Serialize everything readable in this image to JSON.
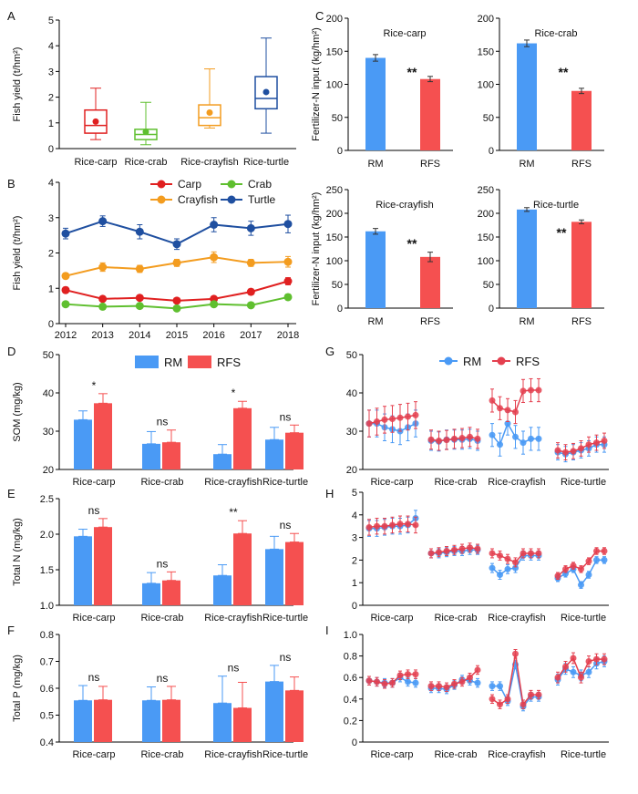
{
  "colors": {
    "carp": "#e02020",
    "crab": "#5fbf2f",
    "crayfish": "#f39c1f",
    "turtle": "#1f4fa0",
    "rm": "#4a9af5",
    "rfs": "#f55050",
    "rm_line": "#4a9af5",
    "rfs_line": "#e4404f"
  },
  "chart_data": [
    {
      "panel": "A",
      "type": "box",
      "ylabel": "Fish yield (t/hm²)",
      "ylim": [
        0,
        5
      ],
      "yticks": [
        0,
        1,
        2,
        3,
        4,
        5
      ],
      "categories": [
        "Rice-carp",
        "Rice-crab",
        "Rice-crayfish",
        "Rice-turtle"
      ],
      "boxes": [
        {
          "min": 0.35,
          "q1": 0.6,
          "median": 0.9,
          "q3": 1.5,
          "max": 2.35,
          "mean": 1.05
        },
        {
          "min": 0.15,
          "q1": 0.35,
          "median": 0.55,
          "q3": 0.75,
          "max": 1.8,
          "mean": 0.65
        },
        {
          "min": 0.8,
          "q1": 0.9,
          "median": 1.2,
          "q3": 1.7,
          "max": 3.1,
          "mean": 1.4
        },
        {
          "min": 0.6,
          "q1": 1.55,
          "median": 1.95,
          "q3": 2.8,
          "max": 4.3,
          "mean": 2.2
        }
      ]
    },
    {
      "panel": "B",
      "type": "line",
      "ylabel": "Fish yield (t/hm²)",
      "ylim": [
        0,
        4
      ],
      "yticks": [
        0,
        1,
        2,
        3,
        4
      ],
      "x": [
        "2012",
        "2013",
        "2014",
        "2015",
        "2016",
        "2017",
        "2018"
      ],
      "series": [
        {
          "name": "Carp",
          "values": [
            0.95,
            0.7,
            0.73,
            0.65,
            0.7,
            0.9,
            1.2
          ],
          "err": [
            0.08,
            0.06,
            0.06,
            0.05,
            0.06,
            0.08,
            0.1
          ]
        },
        {
          "name": "Crab",
          "values": [
            0.55,
            0.48,
            0.5,
            0.43,
            0.55,
            0.52,
            0.75
          ],
          "err": [
            0.06,
            0.05,
            0.05,
            0.06,
            0.06,
            0.06,
            0.08
          ]
        },
        {
          "name": "Crayfish",
          "values": [
            1.35,
            1.6,
            1.55,
            1.72,
            1.88,
            1.72,
            1.75
          ],
          "err": [
            0.08,
            0.12,
            0.1,
            0.1,
            0.15,
            0.1,
            0.15
          ]
        },
        {
          "name": "Turtle",
          "values": [
            2.55,
            2.9,
            2.6,
            2.25,
            2.8,
            2.7,
            2.82
          ],
          "err": [
            0.15,
            0.15,
            0.2,
            0.15,
            0.2,
            0.2,
            0.25
          ]
        }
      ]
    },
    {
      "panel": "C",
      "type": "bar",
      "ylabel": "Fertilizer-N input (kg/hm²)",
      "ylim": [
        0,
        200
      ],
      "yticks": [
        0,
        50,
        100,
        150,
        200
      ],
      "sig_label": "**",
      "categories": [
        "RM",
        "RFS"
      ],
      "subplots": [
        {
          "title": "Rice-carp",
          "values": [
            140,
            108
          ],
          "err": [
            5,
            4
          ]
        },
        {
          "title": "Rice-crab",
          "values": [
            162,
            90
          ],
          "err": [
            5,
            4
          ]
        }
      ]
    },
    {
      "panel": "C2",
      "type": "bar",
      "ylabel": "Fertilizer-N input (kg/hm²)",
      "ylim": [
        0,
        250
      ],
      "yticks": [
        0,
        50,
        100,
        150,
        200,
        250
      ],
      "sig_label": "**",
      "categories": [
        "RM",
        "RFS"
      ],
      "subplots": [
        {
          "title": "Rice-crayfish",
          "values": [
            162,
            108
          ],
          "err": [
            6,
            10
          ]
        },
        {
          "title": "Rice-turtle",
          "values": [
            208,
            182
          ],
          "err": [
            4,
            4
          ]
        }
      ]
    },
    {
      "panel": "D",
      "type": "bar",
      "ylabel": "SOM (mg/kg)",
      "ylim": [
        20,
        50
      ],
      "yticks": [
        20,
        30,
        40,
        50
      ],
      "legend": [
        "RM",
        "RFS"
      ],
      "categories": [
        "Rice-carp",
        "Rice-crab",
        "Rice-crayfish",
        "Rice-turtle"
      ],
      "series": [
        {
          "name": "RM",
          "values": [
            33,
            26.7,
            24,
            27.8
          ],
          "err": [
            2.3,
            3.2,
            2.5,
            3.2
          ]
        },
        {
          "name": "RFS",
          "values": [
            37.3,
            27.1,
            36,
            29.6
          ],
          "err": [
            2.5,
            3.2,
            1.8,
            2
          ]
        }
      ],
      "sig": [
        "*",
        "ns",
        "*",
        "ns"
      ]
    },
    {
      "panel": "E",
      "type": "bar",
      "ylabel": "Total N (mg/kg)",
      "ylim": [
        1.0,
        2.5
      ],
      "yticks": [
        "1.0",
        "1.5",
        "2.0",
        "2.5"
      ],
      "categories": [
        "Rice-carp",
        "Rice-crab",
        "Rice-crayfish",
        "Rice-turtle"
      ],
      "series": [
        {
          "name": "RM",
          "values": [
            1.97,
            1.31,
            1.42,
            1.79
          ],
          "err": [
            0.1,
            0.15,
            0.15,
            0.18
          ]
        },
        {
          "name": "RFS",
          "values": [
            2.1,
            1.35,
            2.01,
            1.89
          ],
          "err": [
            0.12,
            0.12,
            0.18,
            0.12
          ]
        }
      ],
      "sig": [
        "ns",
        "ns",
        "**",
        "ns"
      ]
    },
    {
      "panel": "F",
      "type": "bar",
      "ylabel": "Total P (mg/kg)",
      "ylim": [
        0.4,
        0.8
      ],
      "yticks": [
        "0.4",
        "0.5",
        "0.6",
        "0.7",
        "0.8"
      ],
      "categories": [
        "Rice-carp",
        "Rice-crab",
        "Rice-crayfish",
        "Rice-turtle"
      ],
      "series": [
        {
          "name": "RM",
          "values": [
            0.555,
            0.555,
            0.545,
            0.625
          ],
          "err": [
            0.055,
            0.05,
            0.1,
            0.06
          ]
        },
        {
          "name": "RFS",
          "values": [
            0.557,
            0.557,
            0.527,
            0.592
          ],
          "err": [
            0.05,
            0.05,
            0.095,
            0.05
          ]
        }
      ],
      "sig": [
        "ns",
        "ns",
        "ns",
        "ns"
      ]
    },
    {
      "panel": "G",
      "type": "line",
      "ylim": [
        20,
        50
      ],
      "yticks": [
        20,
        30,
        40,
        50
      ],
      "legend": [
        "RM",
        "RFS"
      ],
      "categories": [
        "Rice-carp",
        "Rice-crab",
        "Rice-crayfish",
        "Rice-turtle"
      ],
      "groups": [
        {
          "rm": [
            32,
            32,
            31,
            30.5,
            30,
            31,
            32
          ],
          "rfs": [
            32,
            32.5,
            33,
            33.2,
            33.5,
            33.8,
            34.2
          ],
          "err": 3.5
        },
        {
          "rm": [
            27.5,
            27.3,
            27.8,
            27.8,
            27.8,
            28,
            27.5
          ],
          "rfs": [
            27.8,
            27.5,
            27.7,
            28,
            28.2,
            28.5,
            28
          ],
          "err": 2.5
        },
        {
          "rm": [
            29,
            26.5,
            32,
            28.5,
            27,
            28,
            28
          ],
          "rfs": [
            38,
            36,
            35.5,
            35,
            40.5,
            40.7,
            40.7
          ],
          "err": 3
        },
        {
          "rm": [
            24.5,
            24,
            24.5,
            25,
            25.5,
            26.5,
            26.5
          ],
          "rfs": [
            25,
            24.5,
            24.8,
            25.5,
            26.5,
            27,
            27.5
          ],
          "err": 2
        }
      ]
    },
    {
      "panel": "H",
      "type": "line",
      "ylim": [
        0,
        5
      ],
      "yticks": [
        0,
        1,
        2,
        3,
        4,
        5
      ],
      "categories": [
        "Rice-carp",
        "Rice-crab",
        "Rice-crayfish",
        "Rice-turtle"
      ],
      "groups": [
        {
          "rm": [
            3.4,
            3.4,
            3.45,
            3.5,
            3.5,
            3.55,
            3.85
          ],
          "rfs": [
            3.45,
            3.5,
            3.5,
            3.55,
            3.6,
            3.6,
            3.55
          ],
          "err": 0.35
        },
        {
          "rm": [
            2.3,
            2.3,
            2.35,
            2.4,
            2.4,
            2.45,
            2.45
          ],
          "rfs": [
            2.3,
            2.35,
            2.4,
            2.45,
            2.5,
            2.55,
            2.5
          ],
          "err": 0.2
        },
        {
          "rm": [
            1.65,
            1.35,
            1.6,
            1.65,
            2.2,
            2.2,
            2.2
          ],
          "rfs": [
            2.3,
            2.2,
            2.05,
            1.9,
            2.3,
            2.3,
            2.3
          ],
          "err": 0.2
        },
        {
          "rm": [
            1.2,
            1.4,
            1.6,
            0.9,
            1.35,
            2,
            2
          ],
          "rfs": [
            1.3,
            1.6,
            1.75,
            1.6,
            1.95,
            2.4,
            2.4
          ],
          "err": 0.15
        }
      ]
    },
    {
      "panel": "I",
      "type": "line",
      "ylim": [
        0,
        1.0
      ],
      "yticks": [
        "0",
        "0.2",
        "0.4",
        "0.6",
        "0.8",
        "1.0"
      ],
      "categories": [
        "Rice-carp",
        "Rice-crab",
        "Rice-crayfish",
        "Rice-turtle"
      ],
      "groups": [
        {
          "rm": [
            0.57,
            0.56,
            0.55,
            0.55,
            0.6,
            0.56,
            0.55
          ],
          "rfs": [
            0.57,
            0.56,
            0.54,
            0.55,
            0.62,
            0.63,
            0.63
          ],
          "err": 0.04
        },
        {
          "rm": [
            0.5,
            0.5,
            0.49,
            0.53,
            0.58,
            0.57,
            0.55
          ],
          "rfs": [
            0.52,
            0.52,
            0.51,
            0.54,
            0.56,
            0.6,
            0.67
          ],
          "err": 0.04
        },
        {
          "rm": [
            0.52,
            0.52,
            0.38,
            0.72,
            0.33,
            0.42,
            0.42
          ],
          "rfs": [
            0.4,
            0.35,
            0.4,
            0.82,
            0.35,
            0.44,
            0.44
          ],
          "err": 0.04
        },
        {
          "rm": [
            0.58,
            0.68,
            0.65,
            0.62,
            0.65,
            0.73,
            0.75
          ],
          "rfs": [
            0.6,
            0.7,
            0.78,
            0.6,
            0.75,
            0.77,
            0.77
          ],
          "err": 0.05
        }
      ]
    }
  ]
}
